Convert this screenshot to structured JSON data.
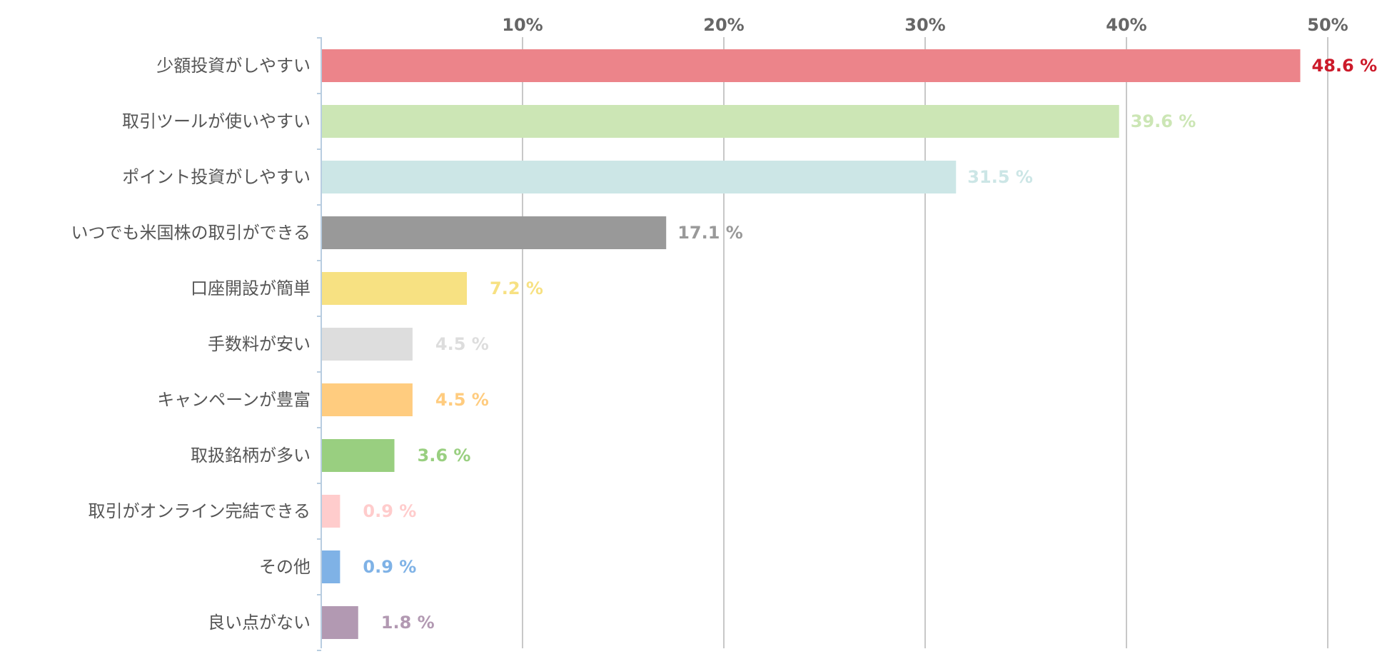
{
  "chart_data": {
    "type": "bar",
    "orientation": "horizontal",
    "xlim": [
      0,
      50
    ],
    "x_ticks": [
      {
        "value": 10,
        "label": "10%"
      },
      {
        "value": 20,
        "label": "20%"
      },
      {
        "value": 30,
        "label": "30%"
      },
      {
        "value": 40,
        "label": "40%"
      },
      {
        "value": 50,
        "label": "50%"
      }
    ],
    "categories": [
      "少額投資がしやすい",
      "取引ツールが使いやすい",
      "ポイント投資がしやすい",
      "いつでも米国株の取引ができる",
      "口座開設が簡単",
      "手数料が安い",
      "キャンペーンが豊富",
      "取扱銘柄が多い",
      "取引がオンライン完結できる",
      "その他",
      "良い点がない"
    ],
    "values": [
      48.6,
      39.6,
      31.5,
      17.1,
      7.2,
      4.5,
      4.5,
      3.6,
      0.9,
      0.9,
      1.8
    ],
    "value_labels": [
      "48.6 %",
      "39.6 %",
      "31.5 %",
      "17.1 %",
      "7.2 %",
      "4.5 %",
      "4.5 %",
      "3.6 %",
      "0.9 %",
      "0.9 %",
      "1.8 %"
    ],
    "bar_colors": [
      "#ec848a",
      "#cce6b5",
      "#cce6e6",
      "#999999",
      "#f7e182",
      "#dddddd",
      "#ffcc7f",
      "#99cf80",
      "#ffcccc",
      "#7fb2e6",
      "#b299b2"
    ],
    "label_colors": [
      "#cc1a2a",
      "#cce6b5",
      "#cce6e6",
      "#999999",
      "#f7e182",
      "#dddddd",
      "#ffcc7f",
      "#99cf80",
      "#ffcccc",
      "#7fb2e6",
      "#b299b2"
    ],
    "grid": true,
    "axis_position": "top",
    "xlabel": "",
    "ylabel": "",
    "title": ""
  }
}
